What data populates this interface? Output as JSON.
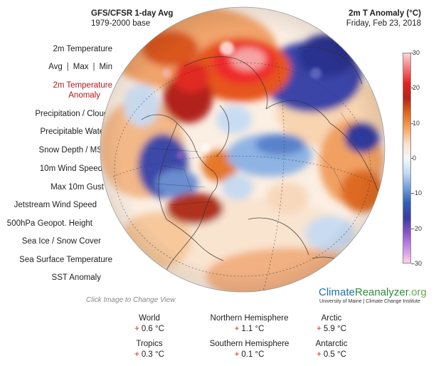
{
  "header": {
    "left_title": "GFS/CFSR 1-day Avg",
    "left_sub": "1979-2000 base",
    "right_title": "2m T Anomaly (°C)",
    "right_sub": "Friday, Feb 23, 2018"
  },
  "menu": {
    "temperature": "2m Temperature",
    "avg": "Avg",
    "max": "Max",
    "min": "Min",
    "separator": "|",
    "anomaly_line1": "2m Temperature",
    "anomaly_line2": "Anomaly",
    "precip": "Precipitation / Clouds",
    "precipitable": "Precipitable Water",
    "snow": "Snow Depth / MSLP",
    "wind": "10m Wind Speed",
    "gust": "Max 10m Gust",
    "jetstream": "Jetstream Wind Speed",
    "geopot": "500hPa Geopot. Height",
    "seaice": "Sea Ice / Snow Cover",
    "sst": "Sea Surface Temperature",
    "sst_anom": "SST Anomaly"
  },
  "hint": "Click Image to Change View",
  "colorbar": {
    "ticks": [
      "30",
      "20",
      "10",
      "0",
      "-10",
      "-20",
      "-30"
    ],
    "range": [
      -30,
      30
    ],
    "colors": [
      "#ffd0ea",
      "#c78ee6",
      "#8a55c8",
      "#3b3b9e",
      "#2f5fb8",
      "#6f9fd8",
      "#c4dcf2",
      "#f4f8fb",
      "#fbe0c8",
      "#f5a35c",
      "#e0691e",
      "#b5231a",
      "#e4211f",
      "#f47a7a",
      "#fcd4d4"
    ]
  },
  "brand": {
    "part1": "Climate",
    "part2": "Reanalyzer",
    "part3": ".org",
    "sub": "University of Maine | Climate Change Institute"
  },
  "stats": {
    "world": {
      "label": "World",
      "sign": "+",
      "value": "0.6 °C"
    },
    "nh": {
      "label": "Northern Hemisphere",
      "sign": "+",
      "value": "1.1 °C"
    },
    "arctic": {
      "label": "Arctic",
      "sign": "+",
      "value": "5.9 °C"
    },
    "tropics": {
      "label": "Tropics",
      "sign": "+",
      "value": "0.3 °C"
    },
    "sh": {
      "label": "Southern Hemisphere",
      "sign": "+",
      "value": "0.1 °C"
    },
    "antarctic": {
      "label": "Antarctic",
      "sign": "+",
      "value": "0.5 °C"
    }
  }
}
